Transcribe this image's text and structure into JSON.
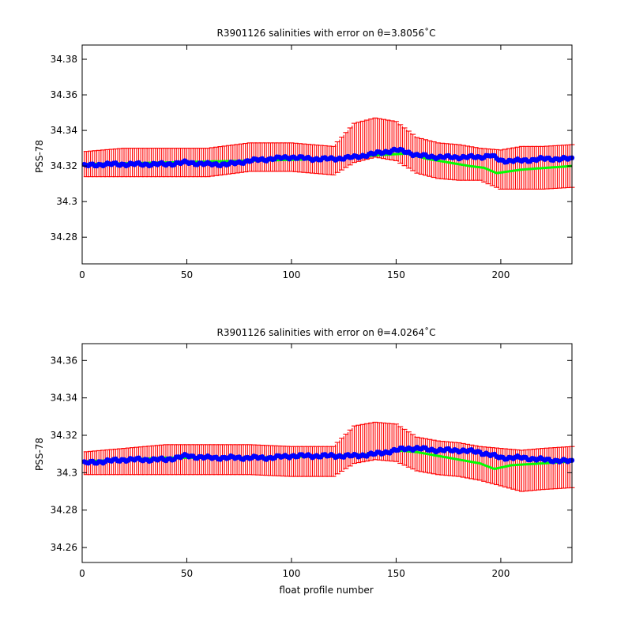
{
  "chart_data": [
    {
      "type": "line",
      "title": "R3901126 salinities with error on θ=3.8056˚C",
      "xlabel": "",
      "ylabel": "PSS-78",
      "xlim": [
        0,
        234
      ],
      "ylim": [
        34.265,
        34.388
      ],
      "xticks": [
        0,
        50,
        100,
        150,
        200
      ],
      "xtick_labels": [
        "0",
        "50",
        "100",
        "150",
        "200"
      ],
      "yticks": [
        34.28,
        34.3,
        34.32,
        34.34,
        34.36,
        34.38
      ],
      "ytick_labels": [
        "34.28",
        "34.3",
        "34.32",
        "34.34",
        "34.36",
        "34.38"
      ],
      "grid": false,
      "legend": "none",
      "series": [
        {
          "role": "error-bars",
          "color": "#ff0000",
          "x": [
            0,
            20,
            40,
            60,
            80,
            100,
            120,
            130,
            140,
            150,
            160,
            170,
            180,
            190,
            200,
            210,
            220,
            234
          ],
          "mid": [
            34.321,
            34.322,
            34.322,
            34.322,
            34.325,
            34.325,
            34.323,
            34.333,
            34.336,
            34.334,
            34.326,
            34.323,
            34.322,
            34.321,
            34.318,
            34.319,
            34.319,
            34.32
          ],
          "half": [
            0.007,
            0.008,
            0.008,
            0.008,
            0.008,
            0.008,
            0.008,
            0.011,
            0.011,
            0.011,
            0.01,
            0.01,
            0.01,
            0.009,
            0.011,
            0.012,
            0.012,
            0.012
          ]
        },
        {
          "role": "mapped-line",
          "color": "#00ff00",
          "x": [
            0,
            40,
            80,
            120,
            140,
            155,
            165,
            175,
            185,
            192,
            198,
            210,
            234
          ],
          "y": [
            34.321,
            34.322,
            34.323,
            34.324,
            34.326,
            34.327,
            34.324,
            34.322,
            34.32,
            34.319,
            34.316,
            34.318,
            34.32
          ]
        },
        {
          "role": "float-salinity",
          "color": "#0000ff",
          "x": [
            0,
            10,
            20,
            30,
            40,
            50,
            60,
            70,
            80,
            90,
            100,
            110,
            120,
            130,
            140,
            150,
            155,
            160,
            170,
            180,
            190,
            195,
            200,
            210,
            220,
            234
          ],
          "y": [
            34.32,
            34.321,
            34.321,
            34.321,
            34.321,
            34.322,
            34.321,
            34.321,
            34.323,
            34.324,
            34.325,
            34.324,
            34.324,
            34.325,
            34.327,
            34.329,
            34.328,
            34.326,
            34.325,
            34.325,
            34.325,
            34.326,
            34.323,
            34.323,
            34.324,
            34.324
          ]
        }
      ]
    },
    {
      "type": "line",
      "title": "R3901126 salinities with error on θ=4.0264˚C",
      "xlabel": "float profile number",
      "ylabel": "PSS-78",
      "xlim": [
        0,
        234
      ],
      "ylim": [
        34.252,
        34.369
      ],
      "xticks": [
        0,
        50,
        100,
        150,
        200
      ],
      "xtick_labels": [
        "0",
        "50",
        "100",
        "150",
        "200"
      ],
      "yticks": [
        34.26,
        34.28,
        34.3,
        34.32,
        34.34,
        34.36
      ],
      "ytick_labels": [
        "34.26",
        "34.28",
        "34.3",
        "34.32",
        "34.34",
        "34.36"
      ],
      "grid": false,
      "legend": "none",
      "series": [
        {
          "role": "error-bars",
          "color": "#ff0000",
          "x": [
            0,
            20,
            40,
            60,
            80,
            100,
            120,
            130,
            140,
            150,
            160,
            170,
            180,
            190,
            200,
            210,
            220,
            234
          ],
          "mid": [
            34.305,
            34.306,
            34.307,
            34.307,
            34.307,
            34.306,
            34.306,
            34.315,
            34.317,
            34.316,
            34.31,
            34.308,
            34.307,
            34.305,
            34.303,
            34.301,
            34.302,
            34.303
          ],
          "half": [
            0.006,
            0.007,
            0.008,
            0.008,
            0.008,
            0.008,
            0.008,
            0.01,
            0.01,
            0.01,
            0.009,
            0.009,
            0.009,
            0.009,
            0.01,
            0.011,
            0.011,
            0.011
          ]
        },
        {
          "role": "mapped-line",
          "color": "#00ff00",
          "x": [
            0,
            40,
            80,
            120,
            140,
            150,
            160,
            170,
            180,
            190,
            197,
            205,
            220,
            234
          ],
          "y": [
            34.306,
            34.308,
            34.308,
            34.309,
            34.31,
            34.312,
            34.311,
            34.309,
            34.307,
            34.305,
            34.302,
            34.304,
            34.305,
            34.306
          ]
        },
        {
          "role": "float-salinity",
          "color": "#0000ff",
          "x": [
            0,
            10,
            20,
            30,
            40,
            50,
            60,
            70,
            80,
            90,
            100,
            110,
            120,
            130,
            140,
            150,
            155,
            160,
            170,
            180,
            190,
            200,
            210,
            220,
            234
          ],
          "y": [
            34.305,
            34.306,
            34.307,
            34.307,
            34.307,
            34.309,
            34.308,
            34.308,
            34.308,
            34.308,
            34.309,
            34.309,
            34.309,
            34.309,
            34.31,
            34.312,
            34.313,
            34.313,
            34.312,
            34.312,
            34.311,
            34.308,
            34.308,
            34.307,
            34.306
          ]
        }
      ]
    }
  ]
}
